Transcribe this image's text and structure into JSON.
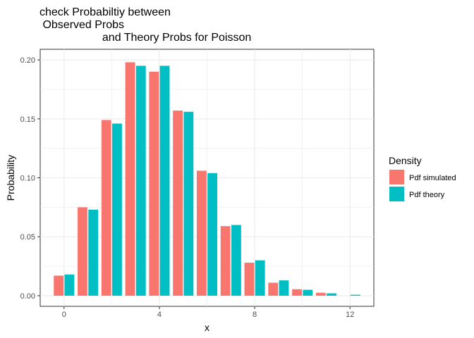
{
  "chart_data": {
    "type": "bar",
    "title_lines": [
      "check Probabiltiy between",
      " Observed Probs",
      "                    and Theory Probs for Poisson"
    ],
    "xlabel": "x",
    "ylabel": "Probability",
    "x": [
      0,
      1,
      2,
      3,
      4,
      5,
      6,
      7,
      8,
      9,
      10,
      11,
      12
    ],
    "series": [
      {
        "name": "Pdf simulated",
        "color": "#F8766D",
        "values": [
          0.017,
          0.075,
          0.149,
          0.198,
          0.19,
          0.157,
          0.106,
          0.059,
          0.028,
          0.011,
          0.0055,
          0.0025,
          0
        ]
      },
      {
        "name": "Pdf theory",
        "color": "#00BFC4",
        "values": [
          0.018,
          0.073,
          0.146,
          0.195,
          0.195,
          0.156,
          0.104,
          0.06,
          0.03,
          0.013,
          0.005,
          0.002,
          0.0008
        ]
      }
    ],
    "xlim": [
      -1.0,
      13.0
    ],
    "ylim": [
      -0.009,
      0.209
    ],
    "xticks": [
      0,
      4,
      8,
      12
    ],
    "xtick_labels": [
      "0",
      "4",
      "8",
      "12"
    ],
    "yticks": [
      0.0,
      0.05,
      0.1,
      0.15,
      0.2
    ],
    "ytick_labels": [
      "0.00",
      "0.05",
      "0.10",
      "0.15",
      "0.20"
    ],
    "grid": true,
    "legend": {
      "title": "Density",
      "position": "right"
    }
  }
}
